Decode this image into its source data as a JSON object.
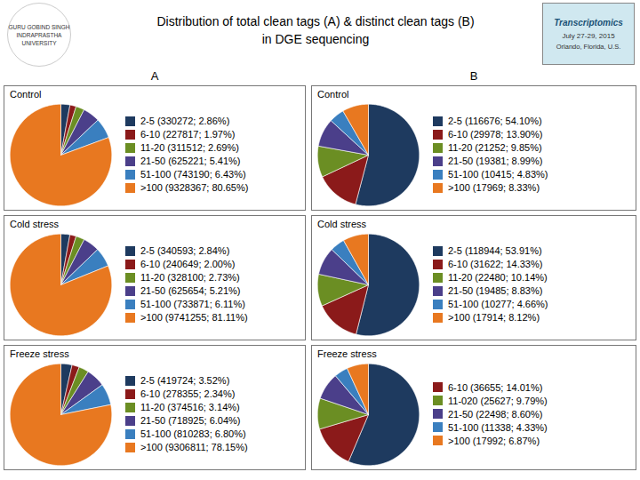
{
  "title": "Distribution of total clean tags (A) & distinct clean tags (B)",
  "subtitle": "in DGE sequencing",
  "annotations": [
    "A",
    "B",
    "GURU GOBIND SINGH",
    "INDRAPRASTHA",
    "UNIVERSITY",
    "Transcriptomics",
    "July 27-29, 2015",
    "Orlando, Florida, U.S."
  ],
  "chart_data": [
    {
      "type": "pie",
      "title": "Control",
      "categories": [
        "2-5 (330272; 2.86%)",
        "6-10 (227817; 1.97%)",
        "11-20 (311512; 2.69%)",
        "21-50 (625221; 5.41%)",
        "51-100 (743190; 6.43%)",
        ">100 (9328367; 80.65%)"
      ],
      "values": [
        2.86,
        1.97,
        2.69,
        5.41,
        6.43,
        80.65
      ],
      "colors": [
        "#1E3A5F",
        "#8B1A1A",
        "#6B8E23",
        "#4B3F8A",
        "#3A7FBF",
        "#E87820"
      ],
      "legend": "right"
    },
    {
      "type": "pie",
      "title": "Control",
      "categories": [
        "2-5 (116676; 54.10%)",
        "6-10 (29978; 13.90%)",
        "11-20 (21252; 9.85%)",
        "21-50 (19381; 8.99%)",
        "51-100 (10415; 4.83%)",
        ">100 (17969; 8.33%)"
      ],
      "values": [
        54.1,
        13.9,
        9.85,
        8.99,
        4.83,
        8.33
      ],
      "colors": [
        "#1E3A5F",
        "#8B1A1A",
        "#6B8E23",
        "#4B3F8A",
        "#3A7FBF",
        "#E87820"
      ],
      "legend": "right"
    },
    {
      "type": "pie",
      "title": "Cold stress",
      "categories": [
        "2-5 (340593; 2.84%)",
        "6-10 (240649; 2.00%)",
        "11-20 (328100; 2.73%)",
        "21-50 (625654; 5.21%)",
        "51-100 (733871; 6.11%)",
        ">100 (9741255; 81.11%)"
      ],
      "values": [
        2.84,
        2.0,
        2.73,
        5.21,
        6.11,
        81.11
      ],
      "colors": [
        "#1E3A5F",
        "#8B1A1A",
        "#6B8E23",
        "#4B3F8A",
        "#3A7FBF",
        "#E87820"
      ],
      "legend": "right"
    },
    {
      "type": "pie",
      "title": "Cold stress",
      "categories": [
        "2-5 (118944; 53.91%)",
        "6-10 (31622; 14.33%)",
        "11-20 (22480; 10.14%)",
        "21-50 (19485; 8.83%)",
        "51-100 (10277; 4.66%)",
        ">100 (17914; 8.12%)"
      ],
      "values": [
        53.91,
        14.33,
        10.14,
        8.83,
        4.66,
        8.12
      ],
      "colors": [
        "#1E3A5F",
        "#8B1A1A",
        "#6B8E23",
        "#4B3F8A",
        "#3A7FBF",
        "#E87820"
      ],
      "legend": "right"
    },
    {
      "type": "pie",
      "title": "Freeze stress",
      "categories": [
        "2-5 (419724; 3.52%)",
        "6-10 (278355; 2.34%)",
        "11-20 (374516; 3.14%)",
        "21-50 (718925; 6.04%)",
        "51-100 (810283; 6.80%)",
        ">100 (9306811; 78.15%)"
      ],
      "values": [
        3.52,
        2.34,
        3.14,
        6.04,
        6.8,
        78.15
      ],
      "colors": [
        "#1E3A5F",
        "#8B1A1A",
        "#6B8E23",
        "#4B3F8A",
        "#3A7FBF",
        "#E87820"
      ],
      "legend": "right"
    },
    {
      "type": "pie",
      "title": "Freeze stress",
      "categories": [
        null,
        "6-10 (36655; 14.01%)",
        "11-020 (25627; 9.79%)",
        "21-50 (22498; 8.60%)",
        "51-100 (11338; 4.33%)",
        ">100 (17992; 6.87%)"
      ],
      "values": [
        56.4,
        14.01,
        9.79,
        8.6,
        4.33,
        6.87
      ],
      "colors": [
        "#1E3A5F",
        "#8B1A1A",
        "#6B8E23",
        "#4B3F8A",
        "#3A7FBF",
        "#E87820"
      ],
      "legend": "right"
    }
  ]
}
